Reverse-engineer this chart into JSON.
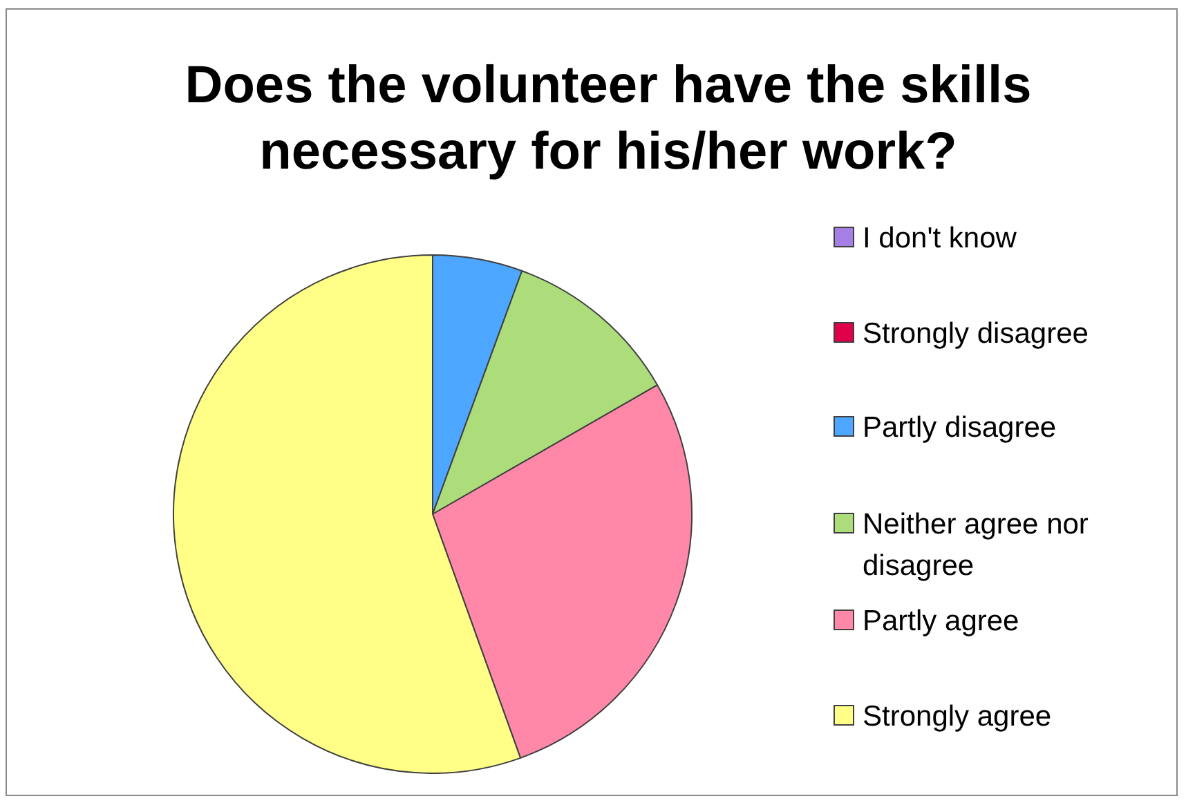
{
  "chart_data": {
    "type": "pie",
    "title": "Does the volunteer have the skills necessary for his/her work?",
    "categories": [
      "I don't know",
      "Strongly disagree",
      "Partly disagree",
      "Neither agree nor disagree",
      "Partly agree",
      "Strongly agree"
    ],
    "values": [
      0,
      0,
      5.6,
      11.1,
      27.8,
      55.5
    ],
    "colors": [
      "#a57fe6",
      "#e0004a",
      "#4da6ff",
      "#addc7a",
      "#ff88a8",
      "#ffff88"
    ],
    "legend": "right"
  }
}
